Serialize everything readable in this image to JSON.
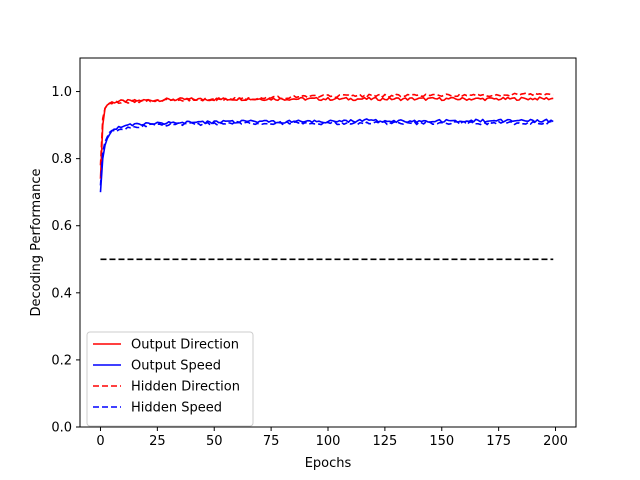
{
  "chart_data": {
    "type": "line",
    "title": "",
    "xlabel": "Epochs",
    "ylabel": "Decoding Performance",
    "xlim": [
      -9,
      209
    ],
    "ylim": [
      0.0,
      1.1
    ],
    "xticks": [
      0,
      25,
      50,
      75,
      100,
      125,
      150,
      175,
      200
    ],
    "yticks": [
      0.0,
      0.2,
      0.4,
      0.6,
      0.8,
      1.0
    ],
    "xtick_labels": [
      "0",
      "25",
      "50",
      "75",
      "100",
      "125",
      "150",
      "175",
      "200"
    ],
    "ytick_labels": [
      "0.0",
      "0.2",
      "0.4",
      "0.6",
      "0.8",
      "1.0"
    ],
    "grid": false,
    "legend_position": "lower-left",
    "series": [
      {
        "name": "Output Direction",
        "color": "#ff0000",
        "style": "solid",
        "x": [
          0,
          1,
          2,
          3,
          4,
          5,
          7,
          10,
          15,
          20,
          25,
          30,
          40,
          50,
          60,
          75,
          90,
          100,
          110,
          125,
          140,
          150,
          160,
          175,
          190,
          199
        ],
        "y": [
          0.74,
          0.9,
          0.95,
          0.96,
          0.965,
          0.968,
          0.97,
          0.971,
          0.972,
          0.974,
          0.975,
          0.976,
          0.977,
          0.977,
          0.978,
          0.978,
          0.978,
          0.978,
          0.978,
          0.978,
          0.978,
          0.978,
          0.978,
          0.978,
          0.979,
          0.979
        ]
      },
      {
        "name": "Output Speed",
        "color": "#0000ff",
        "style": "solid",
        "x": [
          0,
          1,
          2,
          3,
          4,
          5,
          7,
          10,
          15,
          20,
          25,
          30,
          40,
          50,
          60,
          75,
          90,
          100,
          110,
          120,
          125,
          140,
          150,
          160,
          175,
          190,
          199
        ],
        "y": [
          0.7,
          0.8,
          0.84,
          0.86,
          0.87,
          0.88,
          0.89,
          0.9,
          0.903,
          0.905,
          0.906,
          0.907,
          0.908,
          0.909,
          0.91,
          0.91,
          0.911,
          0.911,
          0.912,
          0.915,
          0.912,
          0.912,
          0.912,
          0.913,
          0.913,
          0.913,
          0.913
        ]
      },
      {
        "name": "Hidden Direction",
        "color": "#ff0000",
        "style": "dashed",
        "x": [
          0,
          1,
          2,
          3,
          4,
          5,
          7,
          10,
          15,
          20,
          25,
          30,
          40,
          50,
          60,
          75,
          90,
          100,
          110,
          125,
          140,
          150,
          160,
          175,
          190,
          199
        ],
        "y": [
          0.78,
          0.92,
          0.95,
          0.96,
          0.965,
          0.967,
          0.969,
          0.97,
          0.971,
          0.972,
          0.974,
          0.975,
          0.976,
          0.977,
          0.978,
          0.982,
          0.984,
          0.986,
          0.987,
          0.988,
          0.989,
          0.989,
          0.99,
          0.99,
          0.991,
          0.991
        ]
      },
      {
        "name": "Hidden Speed",
        "color": "#0000ff",
        "style": "dashed",
        "x": [
          0,
          1,
          2,
          3,
          4,
          5,
          7,
          10,
          15,
          20,
          25,
          30,
          40,
          50,
          60,
          75,
          90,
          100,
          110,
          125,
          140,
          150,
          160,
          175,
          190,
          199
        ],
        "y": [
          0.72,
          0.82,
          0.85,
          0.865,
          0.875,
          0.88,
          0.885,
          0.89,
          0.895,
          0.898,
          0.9,
          0.902,
          0.903,
          0.905,
          0.906,
          0.906,
          0.906,
          0.906,
          0.906,
          0.906,
          0.906,
          0.906,
          0.906,
          0.906,
          0.906,
          0.906
        ]
      },
      {
        "name": "",
        "color": "#000000",
        "style": "dashed",
        "x": [
          0,
          199
        ],
        "y": [
          0.5,
          0.5
        ]
      }
    ]
  }
}
